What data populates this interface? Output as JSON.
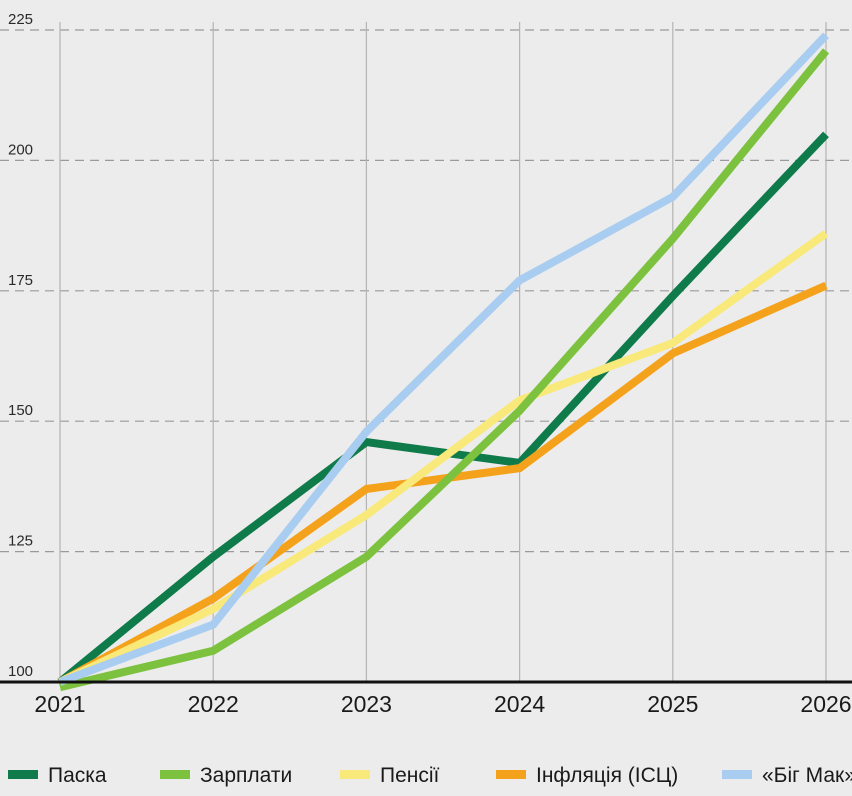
{
  "chart_data": {
    "type": "line",
    "title": "",
    "xlabel": "",
    "ylabel": "",
    "x": [
      "2021",
      "2022",
      "2023",
      "2024",
      "2025",
      "2026"
    ],
    "ylim": [
      100,
      225
    ],
    "yticks": [
      "100",
      "125",
      "150",
      "175",
      "200",
      "225"
    ],
    "grid": "dashed",
    "legend_position": "bottom",
    "series": [
      {
        "name": "Паска",
        "color": "#0f7a4a",
        "values": [
          100,
          124,
          146,
          142,
          174,
          205
        ]
      },
      {
        "name": "Зарплати",
        "color": "#7cc23f",
        "values": [
          99,
          106,
          124,
          152,
          185,
          221
        ]
      },
      {
        "name": "Пенсії",
        "color": "#f9e97a",
        "values": [
          100,
          114,
          132,
          154,
          165,
          186
        ]
      },
      {
        "name": "Інфляція (ІСЦ)",
        "color": "#f4a21b",
        "values": [
          100,
          116,
          137,
          141,
          163,
          176
        ]
      },
      {
        "name": "«Біг Мак»",
        "color": "#a9cdf0",
        "values": [
          100,
          111,
          148,
          177,
          193,
          224
        ]
      }
    ]
  }
}
